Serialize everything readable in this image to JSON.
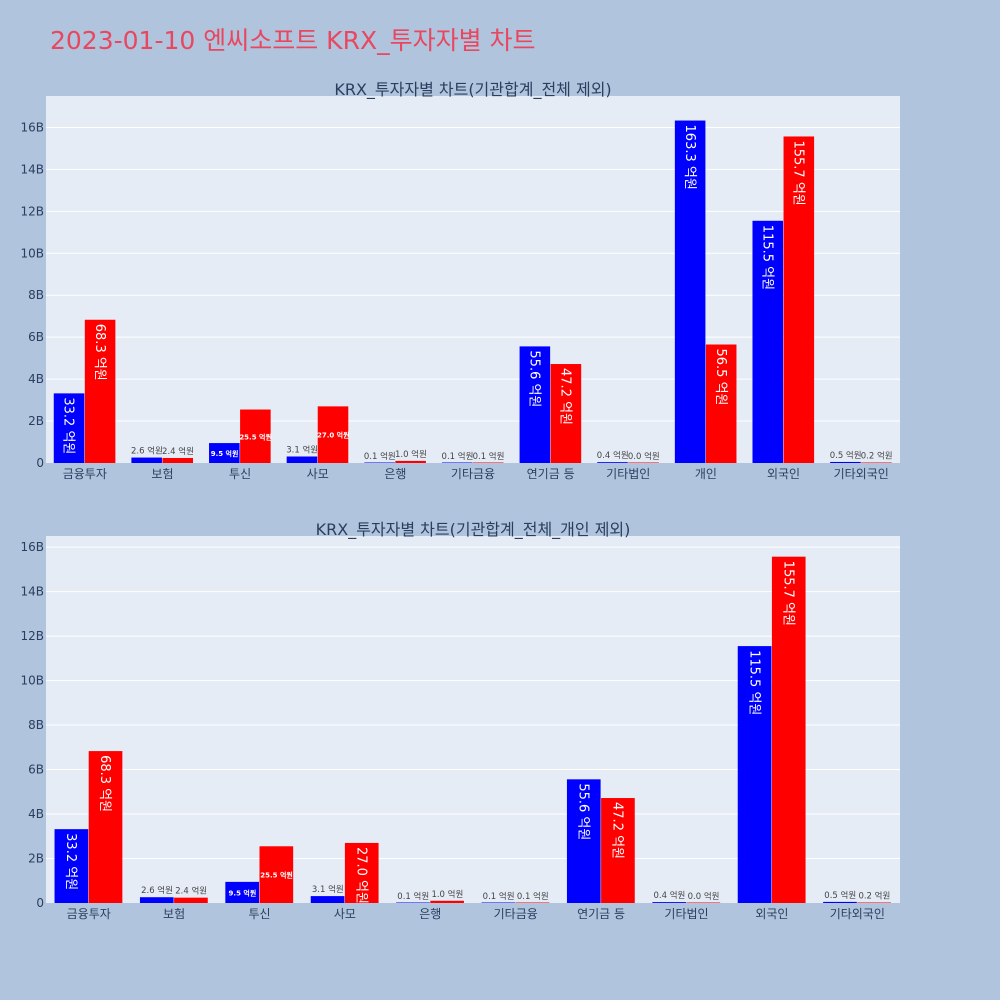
{
  "page_title": "2023-01-10 엔씨소프트 KRX_투자자별 차트",
  "colors": {
    "page_bg": "#b0c4de",
    "plot_bg": "#e5ecf6",
    "title": "#e8475f",
    "subtitle": "#2a3f5f",
    "tick": "#2a3f5f",
    "grid": "#ffffff",
    "series_a": "#0000ff",
    "series_b": "#ff0000",
    "outside_label": "#444444",
    "inside_label": "#ffffff"
  },
  "chart_data": [
    {
      "type": "bar",
      "title": "KRX_투자자별 차트(기관합계_전체 제외)",
      "categories": [
        "금융투자",
        "보험",
        "투신",
        "사모",
        "은행",
        "기타금융",
        "연기금 등",
        "기타법인",
        "개인",
        "외국인",
        "기타외국인"
      ],
      "ylim": [
        0,
        17500000000
      ],
      "yticks": [
        0,
        2000000000,
        4000000000,
        6000000000,
        8000000000,
        10000000000,
        12000000000,
        14000000000,
        16000000000
      ],
      "ytick_labels": [
        "0",
        "2B",
        "4B",
        "6B",
        "8B",
        "10B",
        "12B",
        "14B",
        "16B"
      ],
      "grid": true,
      "series": [
        {
          "values": [
            3320000000,
            260000000,
            950000000,
            310000000,
            10000000,
            10000000,
            5560000000,
            40000000,
            16330000000,
            11550000000,
            50000000
          ],
          "labels": [
            "33.2 억원",
            "2.6 억원",
            "9.5 억원",
            "3.1 억원",
            "0.1 억원",
            "0.1 억원",
            "55.6 억원",
            "0.4 억원",
            "163.3 억원",
            "115.5 억원",
            "0.5 억원"
          ]
        },
        {
          "values": [
            6830000000,
            240000000,
            2550000000,
            2700000000,
            100000000,
            10000000,
            4720000000,
            0,
            5650000000,
            15570000000,
            20000000
          ],
          "labels": [
            "68.3 억원",
            "2.4 억원",
            "25.5 억원",
            "27.0 억원",
            "1.0 억원",
            "0.1 억원",
            "47.2 억원",
            "0.0 억원",
            "56.5 억원",
            "155.7 억원",
            "0.2 억원"
          ]
        }
      ]
    },
    {
      "type": "bar",
      "title": "KRX_투자자별 차트(기관합계_전체_개인 제외)",
      "categories": [
        "금융투자",
        "보험",
        "투신",
        "사모",
        "은행",
        "기타금융",
        "연기금 등",
        "기타법인",
        "외국인",
        "기타외국인"
      ],
      "ylim": [
        0,
        16500000000
      ],
      "yticks": [
        0,
        2000000000,
        4000000000,
        6000000000,
        8000000000,
        10000000000,
        12000000000,
        14000000000,
        16000000000
      ],
      "ytick_labels": [
        "0",
        "2B",
        "4B",
        "6B",
        "8B",
        "10B",
        "12B",
        "14B",
        "16B"
      ],
      "grid": true,
      "series": [
        {
          "values": [
            3320000000,
            260000000,
            950000000,
            310000000,
            10000000,
            10000000,
            5560000000,
            40000000,
            11550000000,
            50000000
          ],
          "labels": [
            "33.2 억원",
            "2.6 억원",
            "9.5 억원",
            "3.1 억원",
            "0.1 억원",
            "0.1 억원",
            "55.6 억원",
            "0.4 억원",
            "115.5 억원",
            "0.5 억원"
          ]
        },
        {
          "values": [
            6830000000,
            240000000,
            2550000000,
            2700000000,
            100000000,
            10000000,
            4720000000,
            0,
            15570000000,
            20000000
          ],
          "labels": [
            "68.3 억원",
            "2.4 억원",
            "25.5 억원",
            "27.0 억원",
            "1.0 억원",
            "0.1 억원",
            "47.2 억원",
            "0.0 억원",
            "155.7 억원",
            "0.2 억원"
          ]
        }
      ]
    }
  ]
}
